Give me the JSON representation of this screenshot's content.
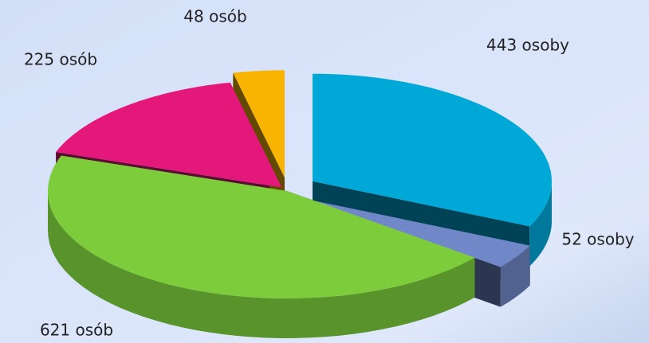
{
  "chart_data": {
    "type": "pie",
    "values": [
      443,
      52,
      621,
      225,
      48
    ],
    "value_labels": [
      "443 osoby",
      "52 osoby",
      "621 osób",
      "225 osób",
      "48 osób"
    ],
    "colors": [
      "#00a8d8",
      "#7088c8",
      "#7ccc3c",
      "#e4187a",
      "#f8b400"
    ]
  }
}
